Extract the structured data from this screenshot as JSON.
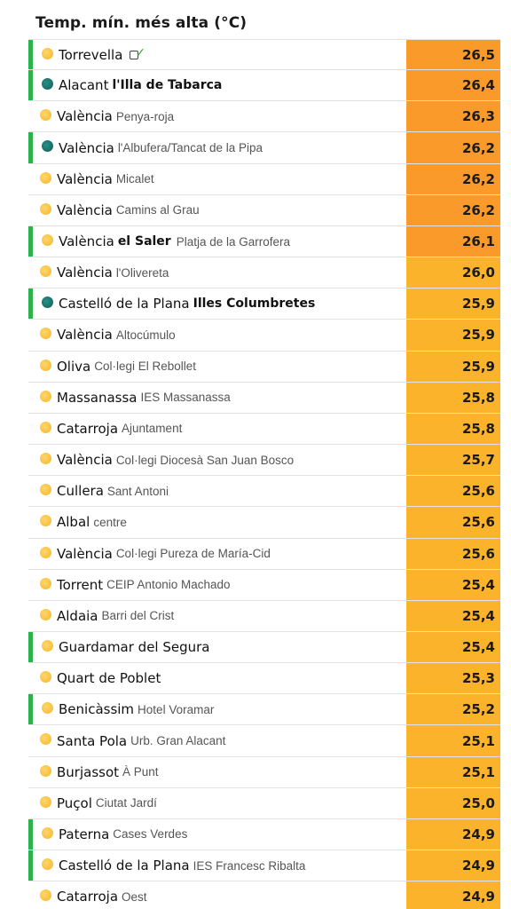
{
  "title": "Temp. mín. més alta (°C)",
  "colors": {
    "hot": "#fa9a2b",
    "warm": "#fbb32b",
    "bar": "#2bb24c",
    "sun": "#f5b62a",
    "teal": "#0e5e58"
  },
  "rows": [
    {
      "city": "Torrevella",
      "station": "",
      "value": "26,5",
      "bar": true,
      "icon": "sun-icon",
      "verified": true,
      "heat": "hot"
    },
    {
      "city": "Alacant",
      "station": "l'Illa de Tabarca",
      "stationBold": true,
      "value": "26,4",
      "bar": true,
      "icon": "teal-dot-icon",
      "heat": "hot"
    },
    {
      "city": "València",
      "station": "Penya-roja",
      "value": "26,3",
      "bar": false,
      "icon": "sun-icon",
      "heat": "hot"
    },
    {
      "city": "València",
      "station": "l'Albufera/Tancat de la Pipa",
      "value": "26,2",
      "bar": true,
      "icon": "teal-dot-icon",
      "heat": "hot"
    },
    {
      "city": "València",
      "station": "Micalet",
      "value": "26,2",
      "bar": false,
      "icon": "sun-icon",
      "heat": "hot"
    },
    {
      "city": "València",
      "station": "Camins al Grau",
      "value": "26,2",
      "bar": false,
      "icon": "sun-icon",
      "heat": "hot"
    },
    {
      "city": "València",
      "station": "el Saler",
      "stationBold": true,
      "extra": "Platja de la Garrofera",
      "value": "26,1",
      "bar": true,
      "icon": "sun-icon",
      "heat": "hot"
    },
    {
      "city": "València",
      "station": "l'Olivereta",
      "value": "26,0",
      "bar": false,
      "icon": "sun-icon",
      "heat": "warm"
    },
    {
      "city": "Castelló de la Plana",
      "station": "Illes Columbretes",
      "stationBold": true,
      "value": "25,9",
      "bar": true,
      "icon": "teal-dot-icon",
      "heat": "warm"
    },
    {
      "city": "València",
      "station": "Altocúmulo",
      "value": "25,9",
      "bar": false,
      "icon": "sun-icon",
      "heat": "warm"
    },
    {
      "city": "Oliva",
      "station": "Col·legi El Rebollet",
      "value": "25,9",
      "bar": false,
      "icon": "sun-icon",
      "heat": "warm"
    },
    {
      "city": "Massanassa",
      "station": "IES Massanassa",
      "value": "25,8",
      "bar": false,
      "icon": "sun-icon",
      "heat": "warm"
    },
    {
      "city": "Catarroja",
      "station": "Ajuntament",
      "value": "25,8",
      "bar": false,
      "icon": "sun-icon",
      "heat": "warm"
    },
    {
      "city": "València",
      "station": "Col·legi Diocesà San Juan Bosco",
      "value": "25,7",
      "bar": false,
      "icon": "sun-icon",
      "heat": "warm"
    },
    {
      "city": "Cullera",
      "station": "Sant Antoni",
      "value": "25,6",
      "bar": false,
      "icon": "sun-icon",
      "heat": "warm"
    },
    {
      "city": "Albal",
      "station": "centre",
      "value": "25,6",
      "bar": false,
      "icon": "sun-icon",
      "heat": "warm"
    },
    {
      "city": "València",
      "station": "Col·legi Pureza de María-Cid",
      "value": "25,6",
      "bar": false,
      "icon": "sun-icon",
      "heat": "warm"
    },
    {
      "city": "Torrent",
      "station": "CEIP Antonio Machado",
      "value": "25,4",
      "bar": false,
      "icon": "sun-icon",
      "heat": "warm"
    },
    {
      "city": "Aldaia",
      "station": "Barri del Crist",
      "value": "25,4",
      "bar": false,
      "icon": "sun-icon",
      "heat": "warm"
    },
    {
      "city": "Guardamar del Segura",
      "station": "",
      "value": "25,4",
      "bar": true,
      "icon": "sun-icon",
      "heat": "warm"
    },
    {
      "city": "Quart de Poblet",
      "station": "",
      "value": "25,3",
      "bar": false,
      "icon": "sun-icon",
      "heat": "warm"
    },
    {
      "city": "Benicàssim",
      "station": "Hotel Voramar",
      "value": "25,2",
      "bar": true,
      "icon": "sun-icon",
      "heat": "warm"
    },
    {
      "city": "Santa Pola",
      "station": "Urb. Gran Alacant",
      "value": "25,1",
      "bar": false,
      "icon": "sun-icon",
      "heat": "warm"
    },
    {
      "city": "Burjassot",
      "station": "À Punt",
      "value": "25,1",
      "bar": false,
      "icon": "sun-icon",
      "heat": "warm"
    },
    {
      "city": "Puçol",
      "station": "Ciutat Jardí",
      "value": "25,0",
      "bar": false,
      "icon": "sun-icon",
      "heat": "warm"
    },
    {
      "city": "Paterna",
      "station": "Cases Verdes",
      "value": "24,9",
      "bar": true,
      "icon": "sun-icon",
      "heat": "warm"
    },
    {
      "city": "Castelló de la Plana",
      "station": "IES Francesc Ribalta",
      "value": "24,9",
      "bar": true,
      "icon": "sun-icon",
      "heat": "warm"
    },
    {
      "city": "Catarroja",
      "station": "Oest",
      "value": "24,9",
      "bar": false,
      "icon": "sun-icon",
      "heat": "warm"
    }
  ]
}
